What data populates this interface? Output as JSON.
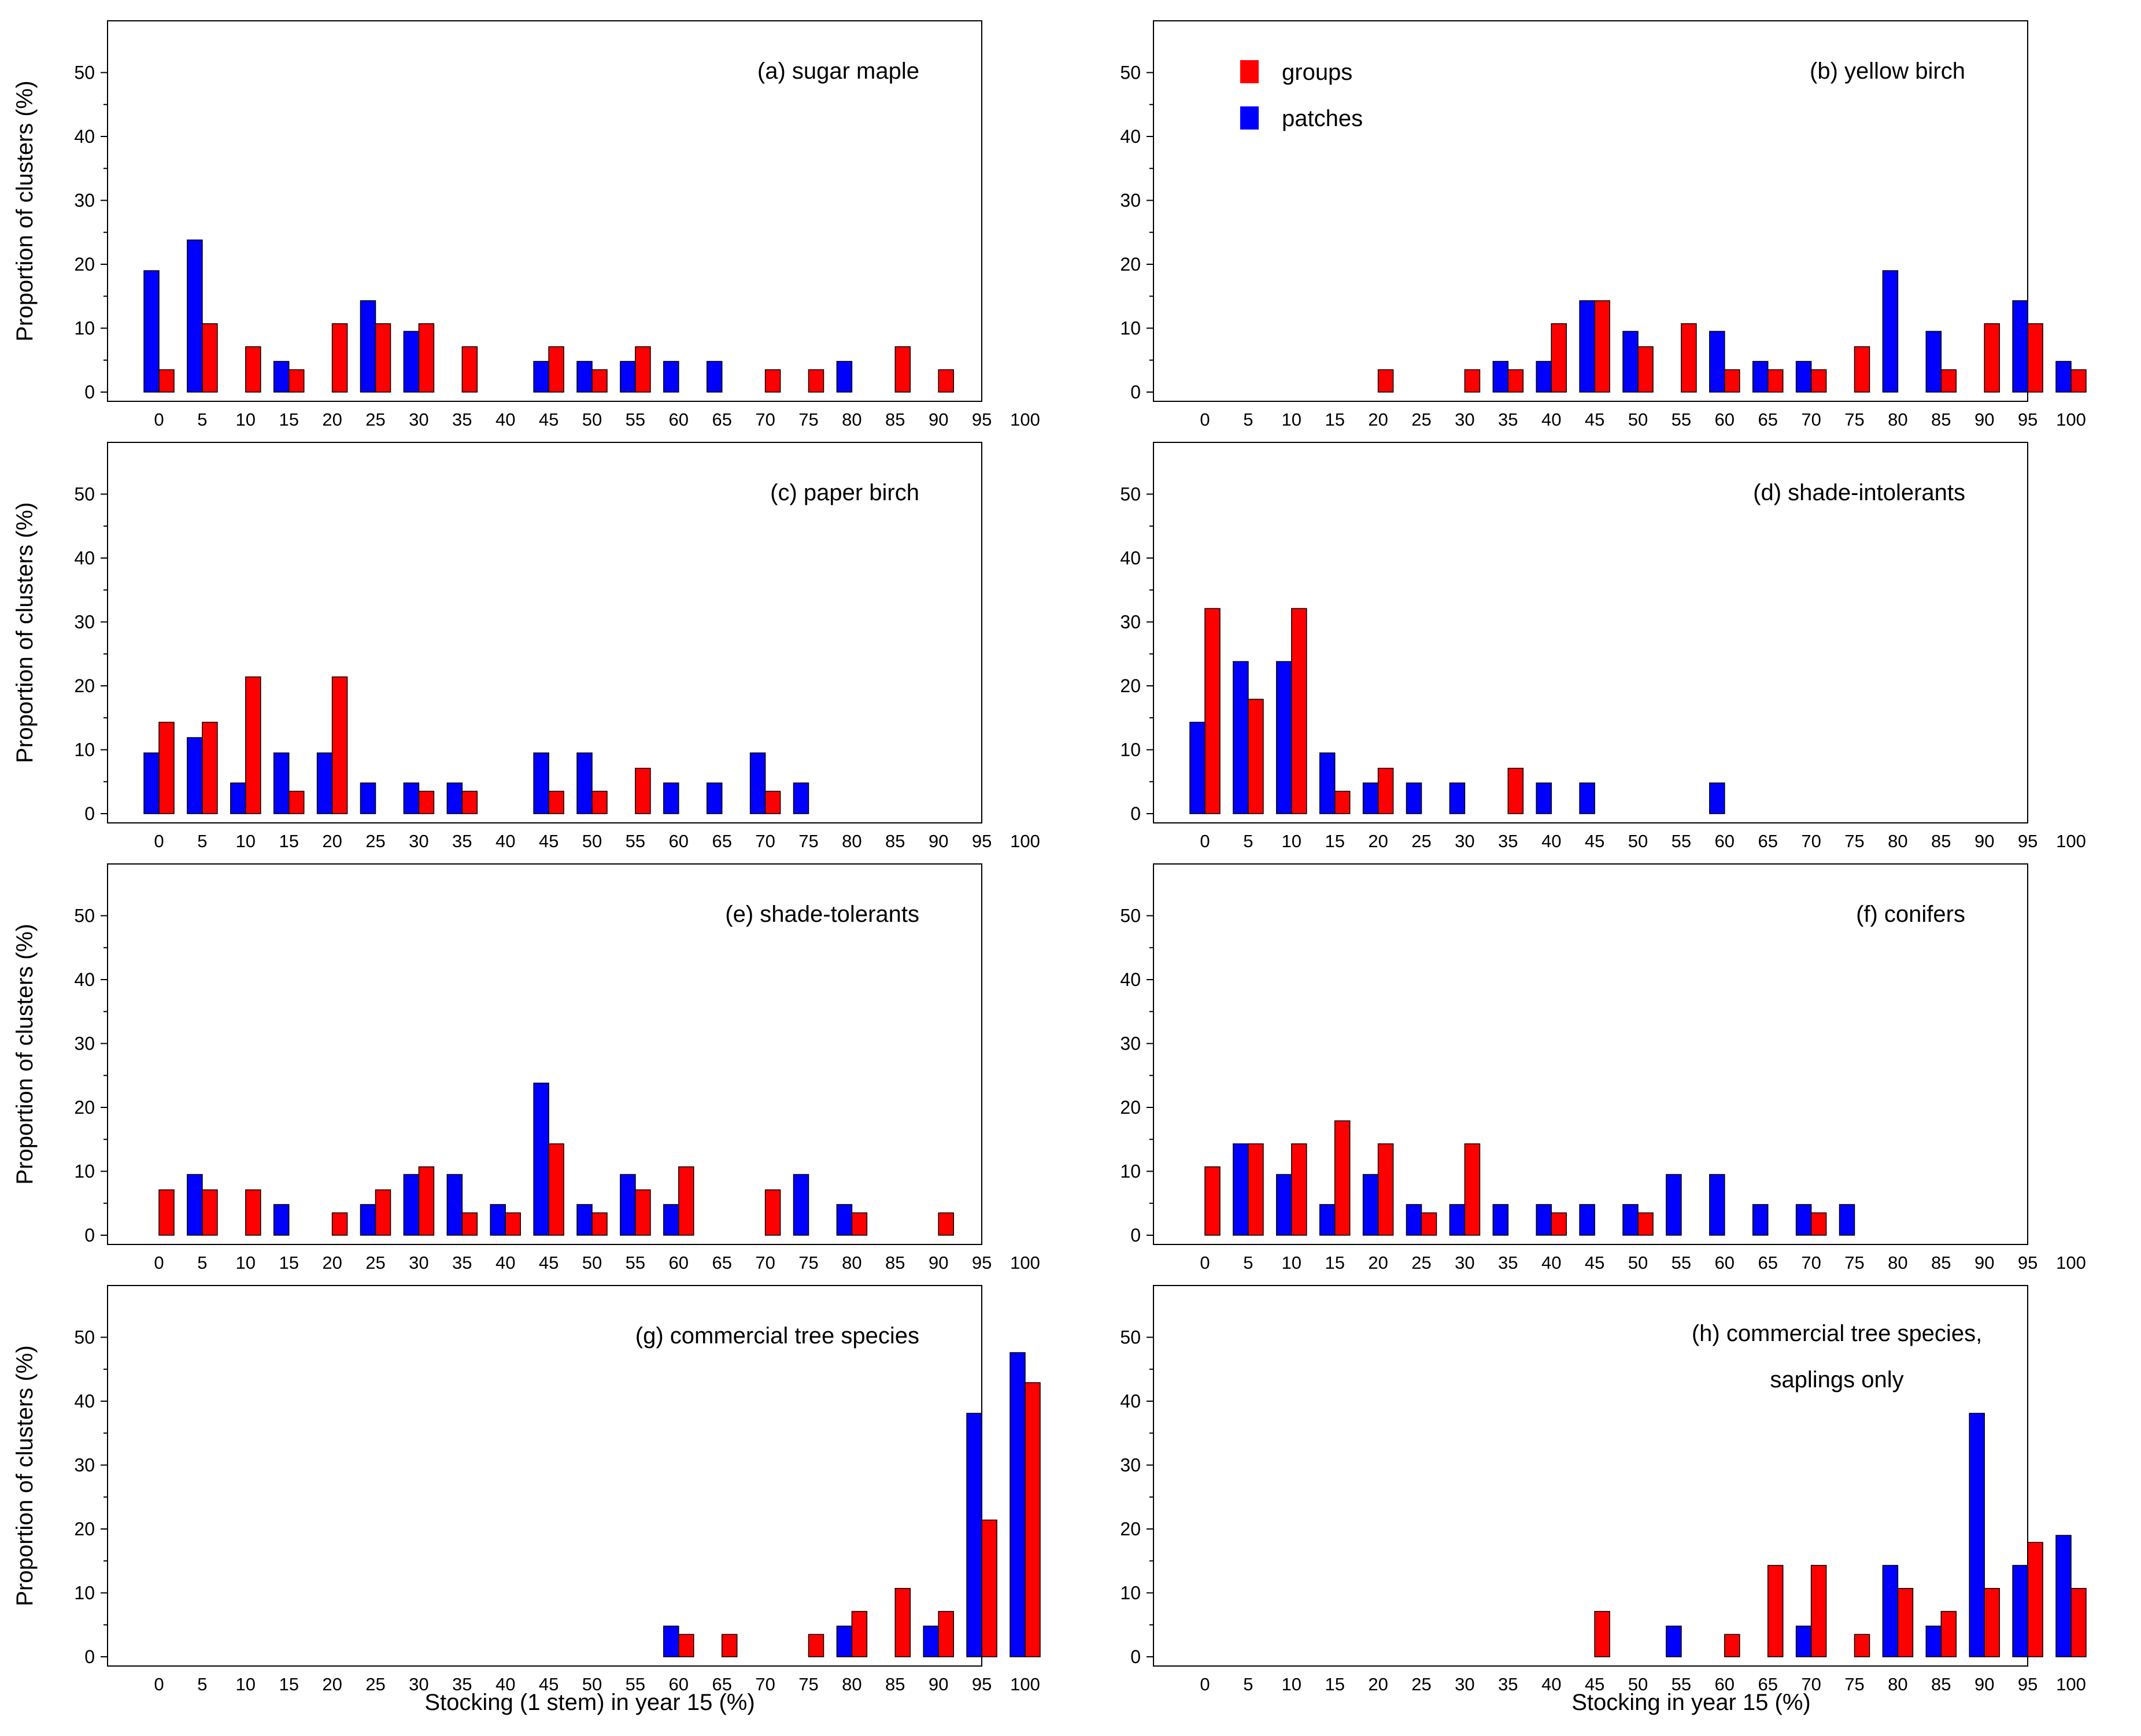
{
  "colors": {
    "groups": "#ff0000",
    "patches": "#0000ff",
    "frame": "#000000"
  },
  "figure": {
    "xlabel_left": "Stocking (1 stem) in year 15 (%)",
    "xlabel_right": "Stocking in year 15 (%)",
    "ylabel": "Proportion of clusters (%)"
  },
  "legend": {
    "groups": "groups",
    "patches": "patches"
  },
  "chart_data": [
    {
      "type": "bar",
      "title": "(a) sugar maple",
      "categories": [
        "0",
        "5",
        "10",
        "15",
        "20",
        "25",
        "30",
        "35",
        "40",
        "45",
        "50",
        "55",
        "60",
        "65",
        "70",
        "75",
        "80",
        "85",
        "90",
        "95",
        "100"
      ],
      "series": [
        {
          "name": "groups",
          "values": [
            3.5,
            10.7,
            7.1,
            3.5,
            10.7,
            10.7,
            10.7,
            7.1,
            0,
            7.1,
            3.5,
            7.1,
            0,
            0,
            3.5,
            3.5,
            0,
            7.1,
            3.5,
            0,
            0
          ]
        },
        {
          "name": "patches",
          "values": [
            19,
            23.8,
            0,
            4.8,
            0,
            14.3,
            9.5,
            0,
            0,
            4.8,
            4.8,
            4.8,
            4.8,
            4.8,
            0,
            0,
            4.8,
            0,
            0,
            0,
            0
          ]
        }
      ],
      "ylim": [
        0,
        50
      ],
      "yticks": [
        0,
        10,
        20,
        30,
        40,
        50
      ],
      "ylabel": "Proportion of clusters (%)",
      "xlabel": "",
      "grid": false
    },
    {
      "type": "bar",
      "title": "(b) yellow birch",
      "categories": [
        "0",
        "5",
        "10",
        "15",
        "20",
        "25",
        "30",
        "35",
        "40",
        "45",
        "50",
        "55",
        "60",
        "65",
        "70",
        "75",
        "80",
        "85",
        "90",
        "95",
        "100"
      ],
      "series": [
        {
          "name": "groups",
          "values": [
            0,
            0,
            0,
            0,
            3.5,
            0,
            3.5,
            3.5,
            10.7,
            14.3,
            7.1,
            10.7,
            3.5,
            3.5,
            3.5,
            7.1,
            0,
            3.5,
            10.7,
            10.7,
            3.5
          ]
        },
        {
          "name": "patches",
          "values": [
            0,
            0,
            0,
            0,
            0,
            0,
            0,
            4.8,
            4.8,
            14.3,
            9.5,
            0,
            9.5,
            4.8,
            4.8,
            0,
            19,
            9.5,
            0,
            14.3,
            4.8
          ]
        }
      ],
      "ylim": [
        0,
        50
      ],
      "yticks": [
        0,
        10,
        20,
        30,
        40,
        50
      ],
      "ylabel": "",
      "xlabel": "",
      "grid": false,
      "legend": "top-left"
    },
    {
      "type": "bar",
      "title": "(c) paper birch",
      "categories": [
        "0",
        "5",
        "10",
        "15",
        "20",
        "25",
        "30",
        "35",
        "40",
        "45",
        "50",
        "55",
        "60",
        "65",
        "70",
        "75",
        "80",
        "85",
        "90",
        "95",
        "100"
      ],
      "series": [
        {
          "name": "groups",
          "values": [
            14.3,
            14.3,
            21.4,
            3.5,
            21.4,
            0,
            3.5,
            3.5,
            0,
            3.5,
            3.5,
            7.1,
            0,
            0,
            3.5,
            0,
            0,
            0,
            0,
            0,
            0
          ]
        },
        {
          "name": "patches",
          "values": [
            9.5,
            11.9,
            4.8,
            9.5,
            9.5,
            4.8,
            4.8,
            4.8,
            0,
            9.5,
            9.5,
            0,
            4.8,
            4.8,
            9.5,
            4.8,
            0,
            0,
            0,
            0,
            0
          ]
        }
      ],
      "ylim": [
        0,
        50
      ],
      "yticks": [
        0,
        10,
        20,
        30,
        40,
        50
      ],
      "ylabel": "Proportion of clusters (%)",
      "xlabel": "",
      "grid": false
    },
    {
      "type": "bar",
      "title": "(d) shade-intolerants",
      "categories": [
        "0",
        "5",
        "10",
        "15",
        "20",
        "25",
        "30",
        "35",
        "40",
        "45",
        "50",
        "55",
        "60",
        "65",
        "70",
        "75",
        "80",
        "85",
        "90",
        "95",
        "100"
      ],
      "series": [
        {
          "name": "groups",
          "values": [
            32.1,
            17.9,
            32.1,
            3.5,
            7.1,
            0,
            0,
            7.1,
            0,
            0,
            0,
            0,
            0,
            0,
            0,
            0,
            0,
            0,
            0,
            0,
            0
          ]
        },
        {
          "name": "patches",
          "values": [
            14.3,
            23.8,
            23.8,
            9.5,
            4.8,
            4.8,
            4.8,
            0,
            4.8,
            4.8,
            0,
            0,
            4.8,
            0,
            0,
            0,
            0,
            0,
            0,
            0,
            0
          ]
        }
      ],
      "ylim": [
        0,
        50
      ],
      "yticks": [
        0,
        10,
        20,
        30,
        40,
        50
      ],
      "ylabel": "",
      "xlabel": "",
      "grid": false
    },
    {
      "type": "bar",
      "title": "(e) shade-tolerants",
      "categories": [
        "0",
        "5",
        "10",
        "15",
        "20",
        "25",
        "30",
        "35",
        "40",
        "45",
        "50",
        "55",
        "60",
        "65",
        "70",
        "75",
        "80",
        "85",
        "90",
        "95",
        "100"
      ],
      "series": [
        {
          "name": "groups",
          "values": [
            7.1,
            7.1,
            7.1,
            0,
            3.5,
            7.1,
            10.7,
            3.5,
            3.5,
            14.3,
            3.5,
            7.1,
            10.7,
            0,
            7.1,
            0,
            3.5,
            0,
            3.5,
            0,
            0
          ]
        },
        {
          "name": "patches",
          "values": [
            0,
            9.5,
            0,
            4.8,
            0,
            4.8,
            9.5,
            9.5,
            4.8,
            23.8,
            4.8,
            9.5,
            4.8,
            0,
            0,
            9.5,
            4.8,
            0,
            0,
            0,
            0
          ]
        }
      ],
      "ylim": [
        0,
        50
      ],
      "yticks": [
        0,
        10,
        20,
        30,
        40,
        50
      ],
      "ylabel": "Proportion of clusters (%)",
      "xlabel": "",
      "grid": false
    },
    {
      "type": "bar",
      "title": "(f) conifers",
      "categories": [
        "0",
        "5",
        "10",
        "15",
        "20",
        "25",
        "30",
        "35",
        "40",
        "45",
        "50",
        "55",
        "60",
        "65",
        "70",
        "75",
        "80",
        "85",
        "90",
        "95",
        "100"
      ],
      "series": [
        {
          "name": "groups",
          "values": [
            10.7,
            14.3,
            14.3,
            17.9,
            14.3,
            3.5,
            14.3,
            0,
            3.5,
            0,
            3.5,
            0,
            0,
            0,
            3.5,
            0,
            0,
            0,
            0,
            0,
            0
          ]
        },
        {
          "name": "patches",
          "values": [
            0,
            14.3,
            9.5,
            4.8,
            9.5,
            4.8,
            4.8,
            4.8,
            4.8,
            4.8,
            4.8,
            9.5,
            9.5,
            4.8,
            4.8,
            4.8,
            0,
            0,
            0,
            0,
            0
          ]
        }
      ],
      "ylim": [
        0,
        50
      ],
      "yticks": [
        0,
        10,
        20,
        30,
        40,
        50
      ],
      "ylabel": "",
      "xlabel": "",
      "grid": false
    },
    {
      "type": "bar",
      "title": "(g) commercial tree species",
      "categories": [
        "0",
        "5",
        "10",
        "15",
        "20",
        "25",
        "30",
        "35",
        "40",
        "45",
        "50",
        "55",
        "60",
        "65",
        "70",
        "75",
        "80",
        "85",
        "90",
        "95",
        "100"
      ],
      "series": [
        {
          "name": "groups",
          "values": [
            0,
            0,
            0,
            0,
            0,
            0,
            0,
            0,
            0,
            0,
            0,
            0,
            3.5,
            3.5,
            0,
            3.5,
            7.1,
            10.7,
            7.1,
            21.4,
            42.9
          ]
        },
        {
          "name": "patches",
          "values": [
            0,
            0,
            0,
            0,
            0,
            0,
            0,
            0,
            0,
            0,
            0,
            0,
            4.8,
            0,
            0,
            0,
            4.8,
            0,
            4.8,
            38.1,
            47.6
          ]
        }
      ],
      "ylim": [
        0,
        50
      ],
      "yticks": [
        0,
        10,
        20,
        30,
        40,
        50
      ],
      "ylabel": "Proportion of clusters (%)",
      "xlabel": "Stocking (1 stem) in year 15 (%)",
      "grid": false
    },
    {
      "type": "bar",
      "title": "(h) commercial tree species,",
      "title_line2": "saplings only",
      "categories": [
        "0",
        "5",
        "10",
        "15",
        "20",
        "25",
        "30",
        "35",
        "40",
        "45",
        "50",
        "55",
        "60",
        "65",
        "70",
        "75",
        "80",
        "85",
        "90",
        "95",
        "100"
      ],
      "series": [
        {
          "name": "groups",
          "values": [
            0,
            0,
            0,
            0,
            0,
            0,
            0,
            0,
            0,
            7.1,
            0,
            0,
            3.5,
            14.3,
            14.3,
            3.5,
            10.7,
            7.1,
            10.7,
            17.9,
            10.7
          ]
        },
        {
          "name": "patches",
          "values": [
            0,
            0,
            0,
            0,
            0,
            0,
            0,
            0,
            0,
            0,
            0,
            4.8,
            0,
            0,
            4.8,
            0,
            14.3,
            4.8,
            38.1,
            14.3,
            19
          ]
        }
      ],
      "ylim": [
        0,
        50
      ],
      "yticks": [
        0,
        10,
        20,
        30,
        40,
        50
      ],
      "ylabel": "",
      "xlabel": "Stocking in year 15 (%)",
      "grid": false
    }
  ]
}
